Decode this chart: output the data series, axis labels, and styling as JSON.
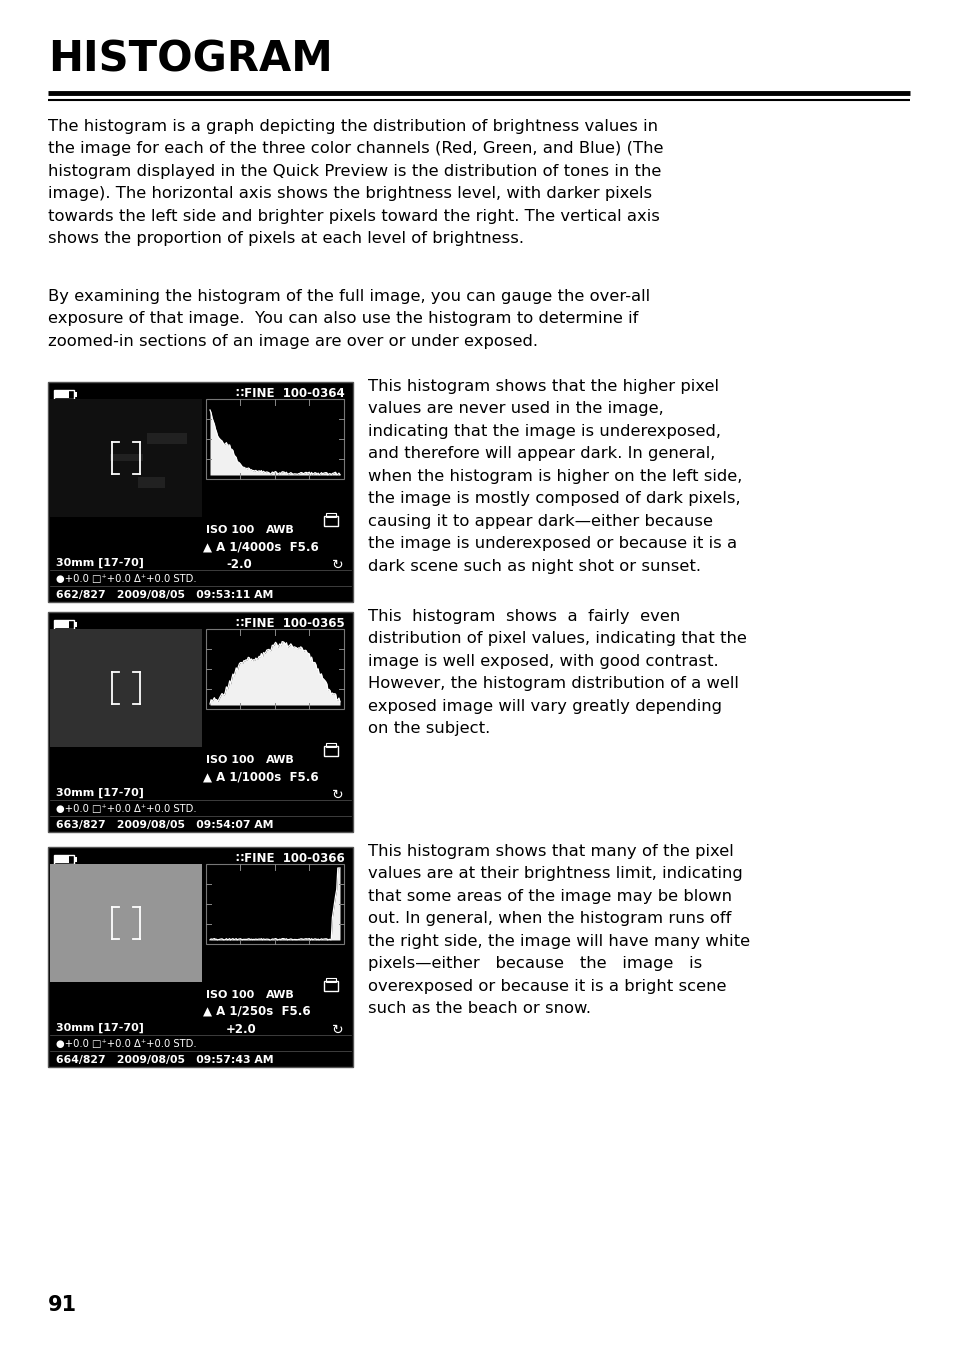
{
  "title": "HISTOGRAM",
  "background_color": "#ffffff",
  "page_number": "91",
  "paragraph1": "The histogram is a graph depicting the distribution of brightness values in the image for each of the three color channels (Red, Green, and Blue) (The histogram displayed in the Quick Preview is the distribution of tones in the image). The horizontal axis shows the brightness level, with darker pixels towards the left side and brighter pixels toward the right. The vertical axis shows the proportion of pixels at each level of brightness.",
  "paragraph2": "By examining the histogram of the full image, you can gauge the over-all exposure of that image.  You can also use the histogram to determine if zoomed-in sections of an image are over or under exposed.",
  "camera_screens": [
    {
      "file_number": "100-0364",
      "iso": "ISO 100",
      "awb": "AWB",
      "shutter": "A 1/4000s",
      "aperture": "F5.6",
      "focal": "30mm [17-70]",
      "ev": "-2.0",
      "counter": "662/827",
      "date": "2009/08/05",
      "time": "09:53:11 AM",
      "histogram_type": "underexposed",
      "description": "This histogram shows that the higher pixel\nvalues are never used in the image,\nindicating that the image is underexposed,\nand therefore will appear dark. In general,\nwhen the histogram is higher on the left side,\nthe image is mostly composed of dark pixels,\ncausing it to appear dark—either because\nthe image is underexposed or because it is a\ndark scene such as night shot or sunset."
    },
    {
      "file_number": "100-0365",
      "iso": "ISO 100",
      "awb": "AWB",
      "shutter": "A 1/1000s",
      "aperture": "F5.6",
      "focal": "30mm [17-70]",
      "ev": "",
      "counter": "663/827",
      "date": "2009/08/05",
      "time": "09:54:07 AM",
      "histogram_type": "normal",
      "description": "This  histogram  shows  a  fairly  even\ndistribution of pixel values, indicating that the\nimage is well exposed, with good contrast.\nHowever, the histogram distribution of a well\nexposed image will vary greatly depending\non the subject."
    },
    {
      "file_number": "100-0366",
      "iso": "ISO 100",
      "awb": "AWB",
      "shutter": "A 1/250s",
      "aperture": "F5.6",
      "focal": "30mm [17-70]",
      "ev": "+2.0",
      "counter": "664/827",
      "date": "2009/08/05",
      "time": "09:57:43 AM",
      "histogram_type": "overexposed",
      "description": "This histogram shows that many of the pixel\nvalues are at their brightness limit, indicating\nthat some areas of the image may be blown\nout. In general, when the histogram runs off\nthe right side, the image will have many white\npixels—either   because   the   image   is\noverexposed or because it is a bright scene\nsuch as the beach or snow."
    }
  ]
}
